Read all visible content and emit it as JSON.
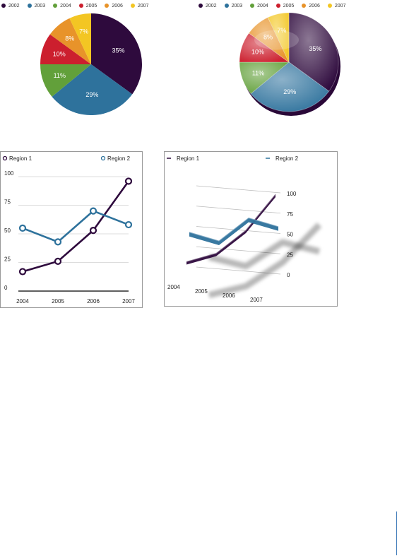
{
  "colors": {
    "y2002": "#2e0a3d",
    "y2003": "#2e729c",
    "y2004": "#62a03a",
    "y2005": "#cc1f2e",
    "y2006": "#e8932a",
    "y2007": "#f3c623",
    "region1": "#2e0a3d",
    "region2": "#2e729c"
  },
  "chart_data": [
    {
      "type": "pie",
      "style": "2d",
      "legend_position": "top",
      "categories": [
        "2002",
        "2003",
        "2004",
        "2005",
        "2006",
        "2007"
      ],
      "values": [
        35,
        29,
        11,
        10,
        8,
        7
      ],
      "data_labels": [
        "35%",
        "29%",
        "11%",
        "10%",
        "8%",
        "7%"
      ]
    },
    {
      "type": "pie",
      "style": "3d",
      "legend_position": "top",
      "categories": [
        "2002",
        "2003",
        "2004",
        "2005",
        "2006",
        "2007"
      ],
      "values": [
        35,
        29,
        11,
        10,
        8,
        7
      ],
      "data_labels": [
        "35%",
        "29%",
        "11%",
        "10%",
        "8%",
        "7%"
      ]
    },
    {
      "type": "line",
      "style": "2d",
      "legend_position": "top",
      "x": [
        "2004",
        "2005",
        "2006",
        "2007"
      ],
      "ylim": [
        0,
        100
      ],
      "yticks": [
        "0",
        "25",
        "50",
        "75",
        "100"
      ],
      "grid": true,
      "series": [
        {
          "name": "Region 1",
          "values": [
            17,
            26,
            53,
            96
          ]
        },
        {
          "name": "Region 2",
          "values": [
            55,
            43,
            70,
            58
          ]
        }
      ]
    },
    {
      "type": "line",
      "style": "3d",
      "legend_position": "top",
      "x": [
        "2004",
        "2005",
        "2006",
        "2007"
      ],
      "ylim": [
        0,
        100
      ],
      "yticks": [
        "0",
        "25",
        "50",
        "75",
        "100"
      ],
      "grid": true,
      "series": [
        {
          "name": "Region 1",
          "values": [
            17,
            26,
            53,
            96
          ]
        },
        {
          "name": "Region 2",
          "values": [
            55,
            43,
            70,
            58
          ]
        }
      ]
    }
  ]
}
